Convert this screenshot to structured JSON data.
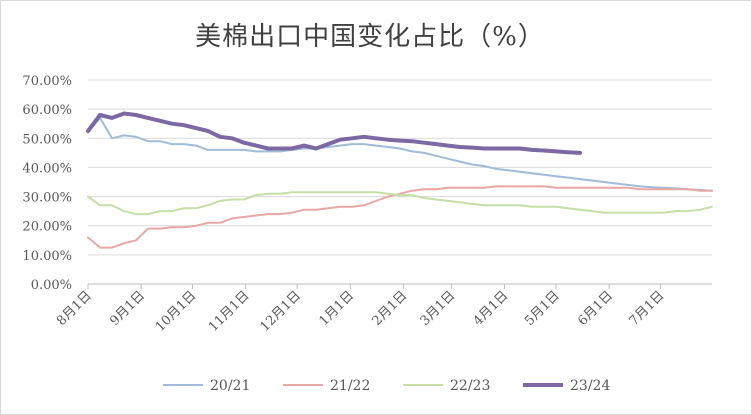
{
  "chart_data": {
    "type": "line",
    "title": "美棉出口中国变化占比（%）",
    "xlabel": "",
    "ylabel": "",
    "ylim": [
      0,
      70
    ],
    "grid": true,
    "legend_position": "bottom",
    "y_tick_labels": [
      "0.00%",
      "10.00%",
      "20.00%",
      "30.00%",
      "40.00%",
      "50.00%",
      "60.00%",
      "70.00%"
    ],
    "x_tick_labels": [
      "8月1日",
      "9月1日",
      "10月1日",
      "11月1日",
      "12月1日",
      "1月1日",
      "2月1日",
      "3月1日",
      "4月1日",
      "5月1日",
      "6月1日",
      "7月1日"
    ],
    "x_tick_weeks": [
      0,
      4.43,
      8.71,
      13.14,
      17.43,
      21.86,
      26.29,
      30.29,
      34.71,
      39,
      43.43,
      47.71
    ],
    "total_weeks": 52,
    "series": [
      {
        "name": "20/21",
        "color": "#a0bcd8",
        "stroke_width": 2,
        "start_week": 0,
        "values": [
          52,
          57,
          50,
          51,
          50.5,
          49,
          49,
          48,
          48,
          47.5,
          46,
          46,
          46,
          46,
          45.5,
          45.5,
          45.5,
          46,
          46.5,
          46.5,
          47,
          47.5,
          48,
          48,
          47.5,
          47,
          46.5,
          45.5,
          45,
          44,
          43,
          42,
          41,
          40.5,
          39.5,
          39,
          38.5,
          38,
          37.5,
          37,
          36.5,
          36,
          35.5,
          35,
          34.5,
          34,
          33.5,
          33.2,
          33,
          32.8,
          32.5,
          32.3,
          32
        ]
      },
      {
        "name": "21/22",
        "color": "#e8a7a3",
        "stroke_width": 2,
        "start_week": 0,
        "values": [
          16,
          12.5,
          12.5,
          14,
          15,
          19,
          19,
          19.5,
          19.5,
          20,
          21,
          21,
          22.5,
          23,
          23.5,
          24,
          24,
          24.5,
          25.5,
          25.5,
          26,
          26.5,
          26.5,
          27,
          28.5,
          30,
          31,
          32,
          32.5,
          32.5,
          33,
          33,
          33,
          33,
          33.5,
          33.5,
          33.5,
          33.5,
          33.5,
          33,
          33,
          33,
          33,
          33,
          33,
          33,
          32.5,
          32.5,
          32.5,
          32.5,
          32.5,
          32,
          32
        ]
      },
      {
        "name": "22/23",
        "color": "#c5dfa5",
        "stroke_width": 2,
        "start_week": 0,
        "values": [
          30,
          27,
          27,
          25,
          24,
          24,
          25,
          25,
          26,
          26,
          27,
          28.5,
          29,
          29,
          30.5,
          31,
          31,
          31.5,
          31.5,
          31.5,
          31.5,
          31.5,
          31.5,
          31.5,
          31.5,
          31,
          30.5,
          30.5,
          29.5,
          29,
          28.5,
          28,
          27.5,
          27,
          27,
          27,
          27,
          26.5,
          26.5,
          26.5,
          26,
          25.5,
          25,
          24.5,
          24.5,
          24.5,
          24.5,
          24.5,
          24.5,
          25,
          25,
          25.5,
          26.5
        ]
      },
      {
        "name": "23/24",
        "color": "#7c68a3",
        "stroke_width": 4,
        "start_week": 0,
        "values": [
          52.5,
          58,
          57,
          58.5,
          58,
          57,
          56,
          55,
          54.5,
          53.5,
          52.5,
          50.5,
          50,
          48.5,
          47.5,
          46.5,
          46.5,
          46.5,
          47.5,
          46.5,
          48,
          49.5,
          50,
          50.5,
          50,
          49.5,
          49.2,
          49,
          48.5,
          48,
          47.5,
          47,
          46.8,
          46.5,
          46.5,
          46.5,
          46.5,
          46,
          45.8,
          45.5,
          45.2,
          45
        ]
      }
    ]
  }
}
